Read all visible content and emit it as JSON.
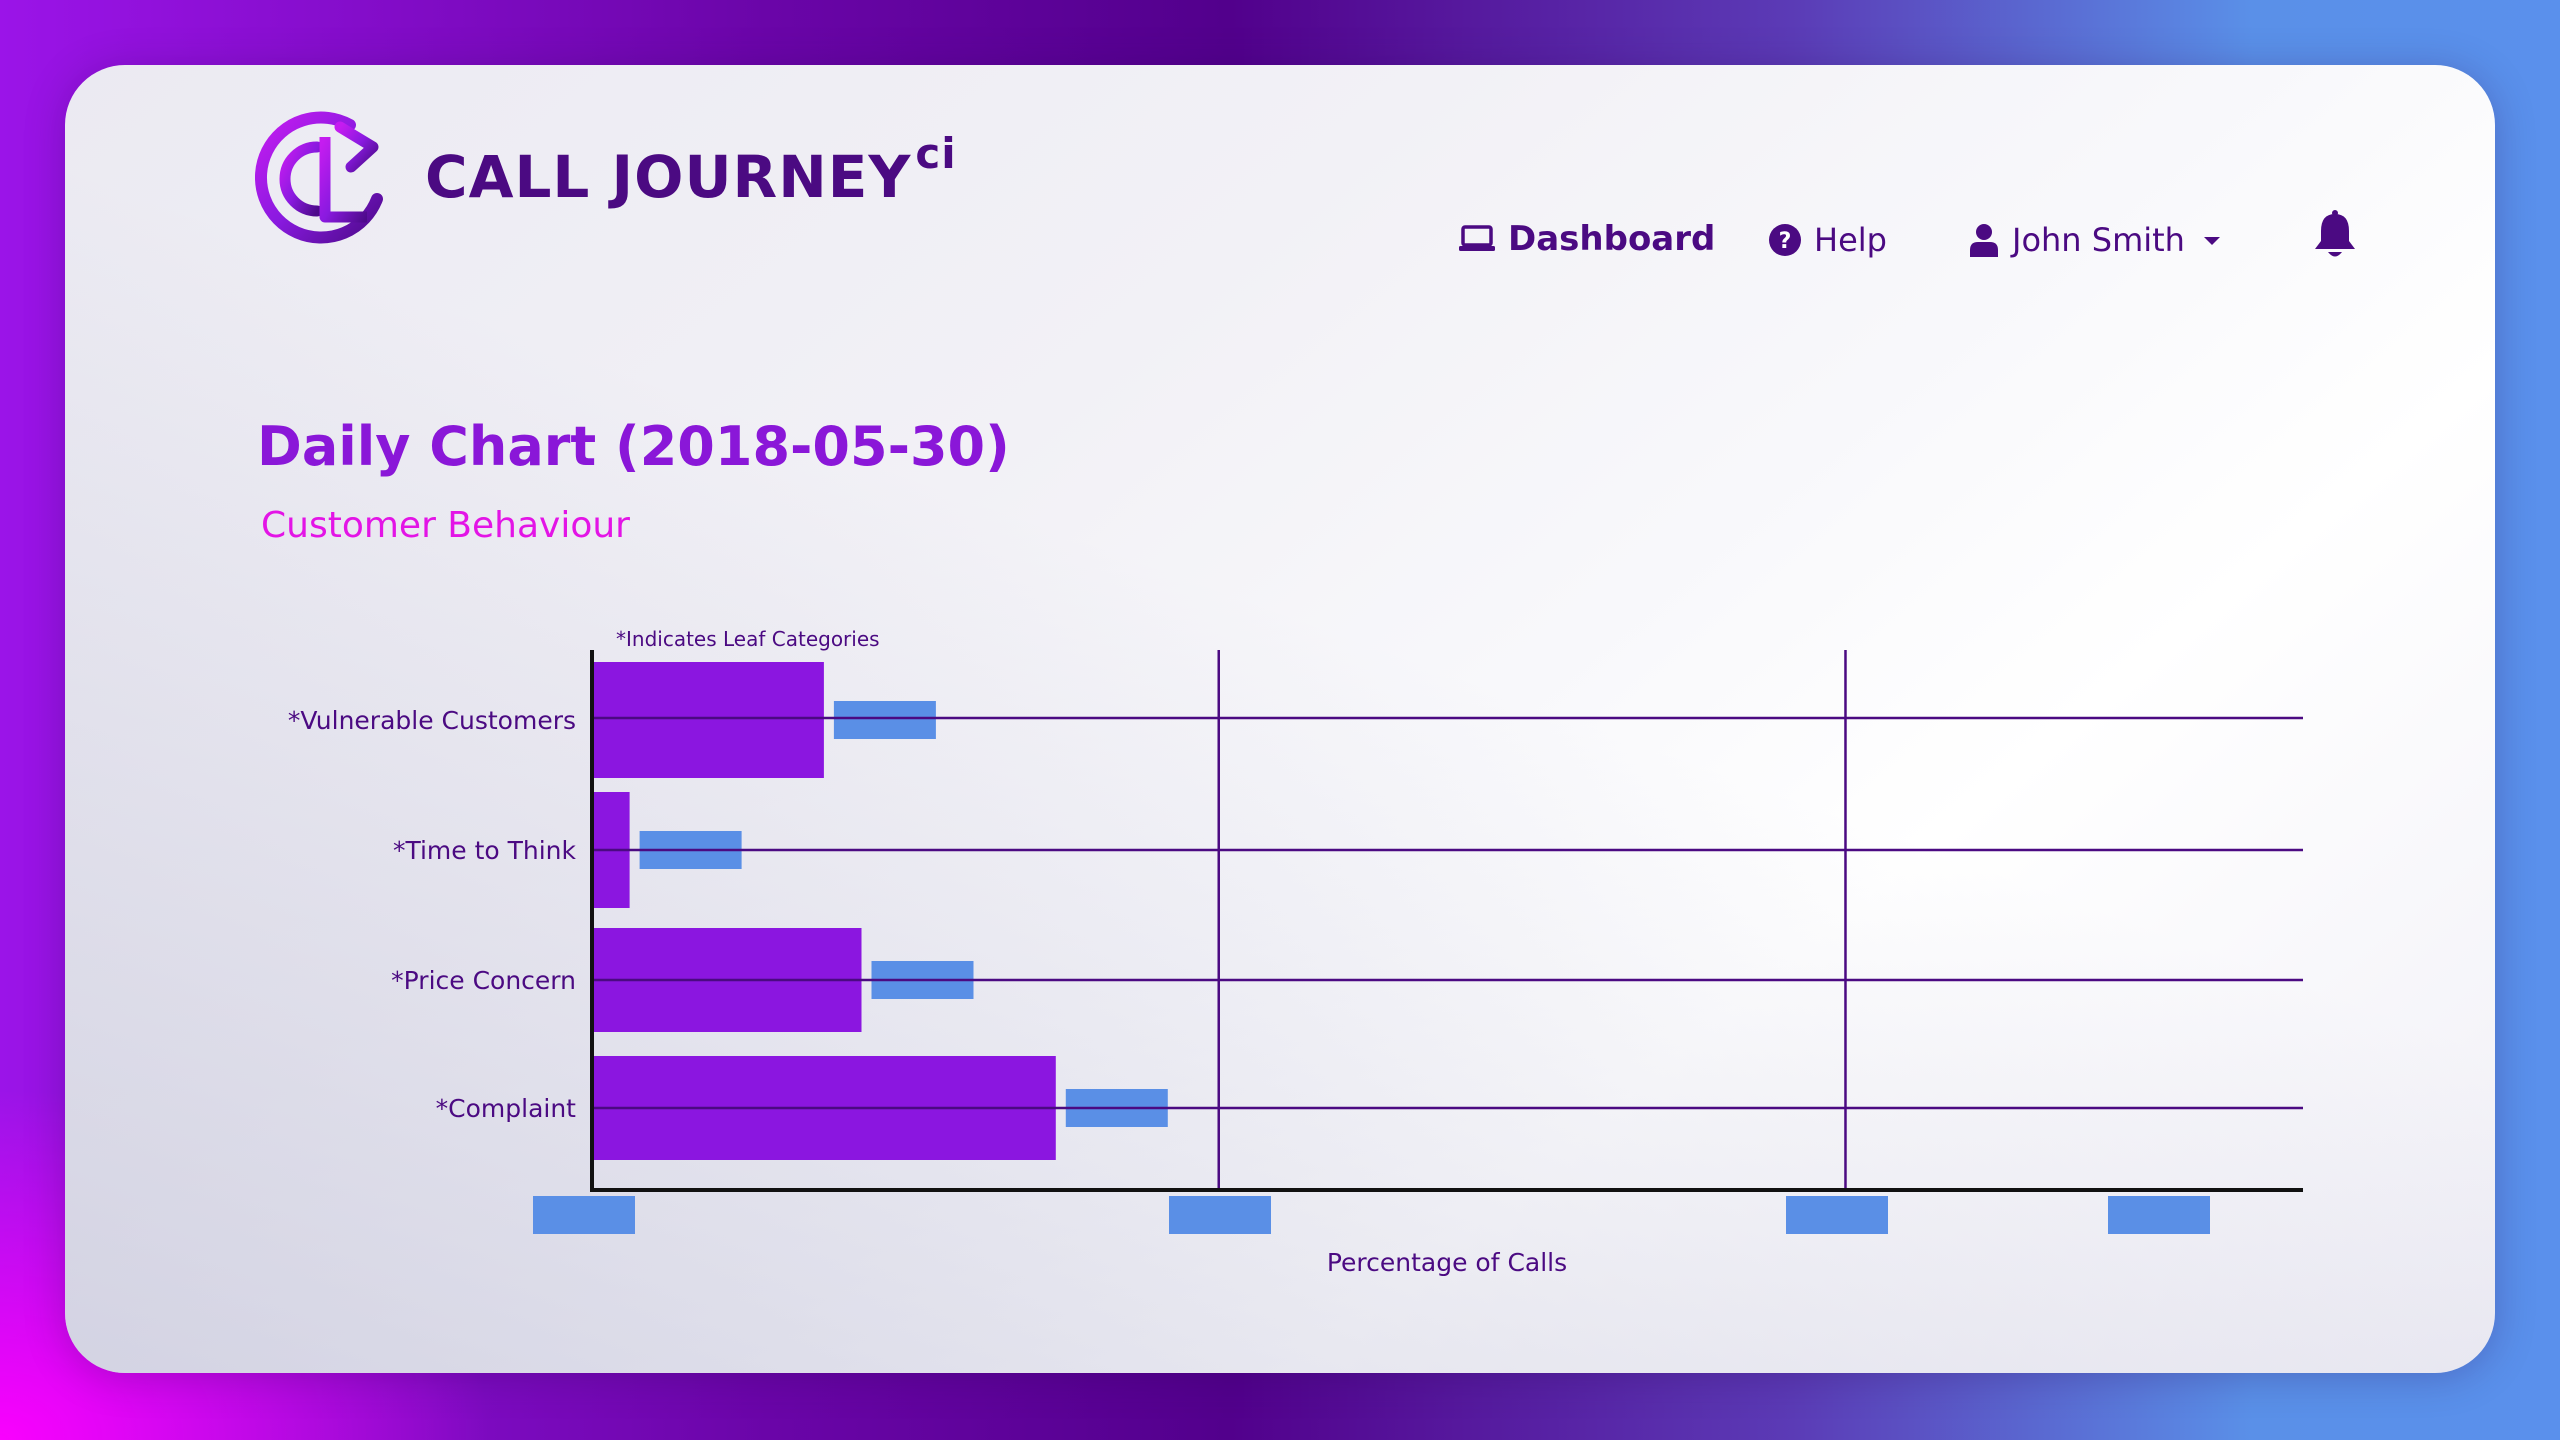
{
  "brand": {
    "name": "CALL JOURNEY",
    "superscript": "ci"
  },
  "nav": {
    "dashboard": "Dashboard",
    "help": "Help",
    "user": "John Smith"
  },
  "icons": {
    "dashboard": "laptop-icon",
    "help": "question-circle-icon",
    "user": "user-icon",
    "user_menu": "caret-down-icon",
    "notifications": "bell-icon"
  },
  "colors": {
    "bar": "#8b16e0",
    "label_box": "#5a8fe6",
    "grid": "#4b0a82",
    "title": "#8a17d8",
    "subtitle": "#e314e6"
  },
  "page": {
    "title": "Daily Chart (2018-05-30)",
    "subtitle": "Customer Behaviour"
  },
  "chart_data": {
    "type": "bar",
    "orientation": "horizontal",
    "note": "*Indicates Leaf Categories",
    "categories": [
      "*Vulnerable Customers",
      "*Time to Think",
      "*Price Concern",
      "*Complaint"
    ],
    "values": [
      0.37,
      0.06,
      0.43,
      0.74
    ],
    "xlabel": "Percentage of Calls",
    "x_gridlines": [
      1,
      2
    ],
    "xlim": [
      0,
      2.73
    ],
    "data_labels_visible": false,
    "tick_labels_visible": false
  }
}
